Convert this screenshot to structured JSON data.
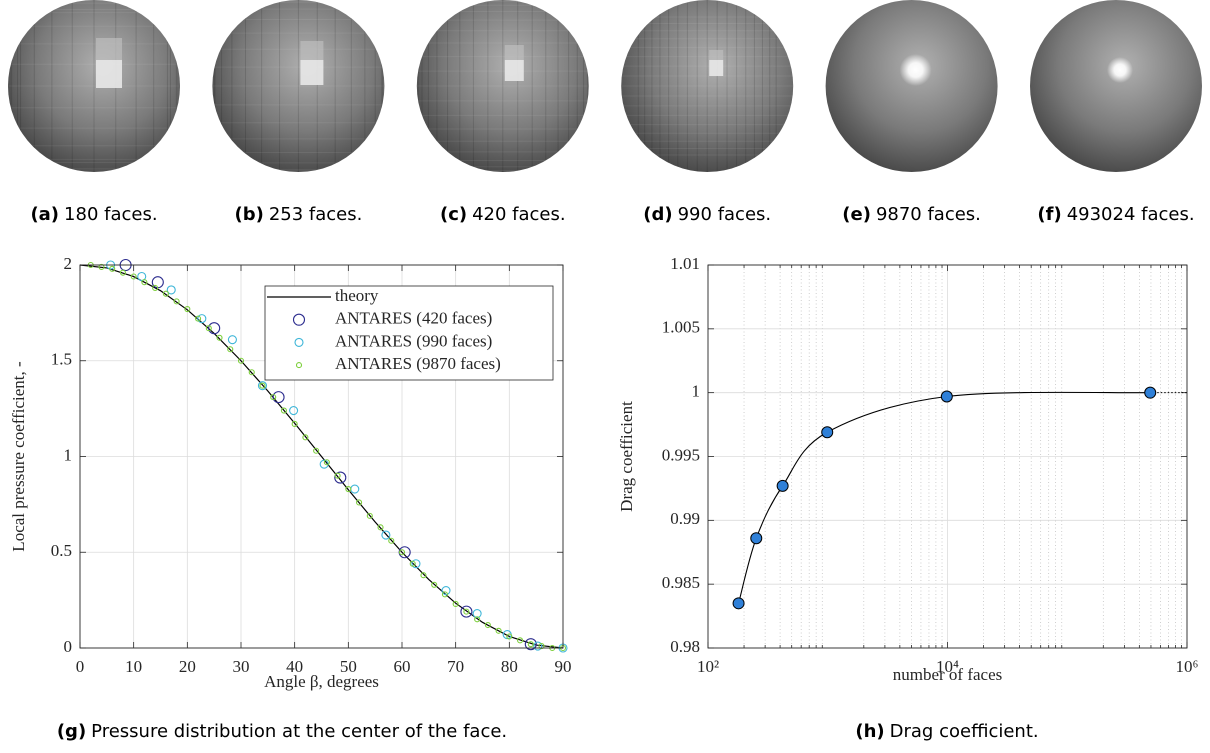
{
  "subfigures": [
    {
      "label": "(a)",
      "caption": "180 faces."
    },
    {
      "label": "(b)",
      "caption": "253 faces."
    },
    {
      "label": "(c)",
      "caption": "420 faces."
    },
    {
      "label": "(d)",
      "caption": "990 faces."
    },
    {
      "label": "(e)",
      "caption": "9870 faces."
    },
    {
      "label": "(f)",
      "caption": "493024 faces."
    }
  ],
  "chart_data": [
    {
      "type": "line",
      "caption_label": "(g)",
      "caption": "Pressure distribution at the center of the face.",
      "x_label": "Angle β, degrees",
      "y_label": "Local pressure coefficient, -",
      "xlim": [
        0,
        90
      ],
      "xticks": [
        0,
        10,
        20,
        30,
        40,
        50,
        60,
        70,
        80,
        90
      ],
      "ylim": [
        0,
        2
      ],
      "yticks": [
        0,
        0.5,
        1,
        1.5,
        2
      ],
      "grid": true,
      "legend": "upper right",
      "series": [
        {
          "name": "theory",
          "color": "#000000",
          "marker": "none",
          "x": [
            0,
            5,
            10,
            15,
            20,
            25,
            30,
            35,
            40,
            45,
            50,
            55,
            60,
            65,
            70,
            75,
            80,
            85,
            90
          ],
          "values": [
            2,
            1.9848,
            1.9397,
            1.866,
            1.766,
            1.6428,
            1.5,
            1.342,
            1.1736,
            1,
            0.8264,
            0.658,
            0.5,
            0.3572,
            0.234,
            0.134,
            0.0603,
            0.0152,
            0
          ]
        },
        {
          "name": "ANTARES (420 faces)",
          "color": "#2e2e8f",
          "marker": "circle",
          "marker_size": 5.5,
          "x": [
            8.5,
            14.5,
            25,
            37,
            48.5,
            60.5,
            72,
            84
          ],
          "values": [
            2.0,
            1.91,
            1.67,
            1.31,
            0.89,
            0.5,
            0.19,
            0.02
          ]
        },
        {
          "name": "ANTARES (990 faces)",
          "color": "#3fb6d8",
          "marker": "circle",
          "marker_size": 4,
          "x": [
            5.7,
            11.5,
            17,
            22.7,
            28.4,
            34,
            39.8,
            45.5,
            51.2,
            57,
            62.6,
            68.2,
            74,
            79.6,
            85.3,
            90
          ],
          "values": [
            2.0,
            1.94,
            1.87,
            1.72,
            1.61,
            1.37,
            1.24,
            0.96,
            0.83,
            0.59,
            0.44,
            0.3,
            0.18,
            0.07,
            0.01,
            0
          ]
        },
        {
          "name": "ANTARES (9870 faces)",
          "color": "#7ccf3a",
          "marker": "circle",
          "marker_size": 2.5,
          "x": [
            2,
            4,
            6,
            8,
            10,
            12,
            14,
            16,
            18,
            20,
            22,
            24,
            26,
            28,
            30,
            32,
            34,
            36,
            38,
            40,
            42,
            44,
            46,
            48,
            50,
            52,
            54,
            56,
            58,
            60,
            62,
            64,
            66,
            68,
            70,
            72,
            74,
            76,
            78,
            80,
            82,
            84,
            86,
            88,
            90
          ],
          "values": [
            2.0,
            1.99,
            1.98,
            1.96,
            1.94,
            1.91,
            1.88,
            1.85,
            1.81,
            1.77,
            1.72,
            1.67,
            1.62,
            1.56,
            1.5,
            1.44,
            1.37,
            1.31,
            1.24,
            1.17,
            1.1,
            1.03,
            0.97,
            0.9,
            0.83,
            0.76,
            0.69,
            0.63,
            0.56,
            0.5,
            0.44,
            0.38,
            0.33,
            0.28,
            0.23,
            0.19,
            0.15,
            0.12,
            0.09,
            0.06,
            0.04,
            0.02,
            0.01,
            0,
            0
          ]
        }
      ]
    },
    {
      "type": "scatter",
      "caption_label": "(h)",
      "caption": "Drag coefficient.",
      "x_label": "number of faces",
      "y_label": "Drag coefficient",
      "xscale": "log",
      "xlim": [
        100,
        1000000
      ],
      "xticks": [
        {
          "value": 100,
          "label": "10²"
        },
        {
          "value": 10000,
          "label": "10⁴"
        },
        {
          "value": 1000000,
          "label": "10⁶"
        }
      ],
      "ylim": [
        0.98,
        1.01
      ],
      "yticks": [
        0.98,
        0.985,
        0.99,
        0.995,
        1,
        1.005,
        1.01
      ],
      "grid": true,
      "minor_grid": true,
      "curve": true,
      "color": "#2f80d8",
      "x": [
        180,
        253,
        420,
        990,
        9870,
        493024
      ],
      "values": [
        0.9835,
        0.9886,
        0.9927,
        0.9969,
        0.9997,
        1.0
      ]
    }
  ]
}
